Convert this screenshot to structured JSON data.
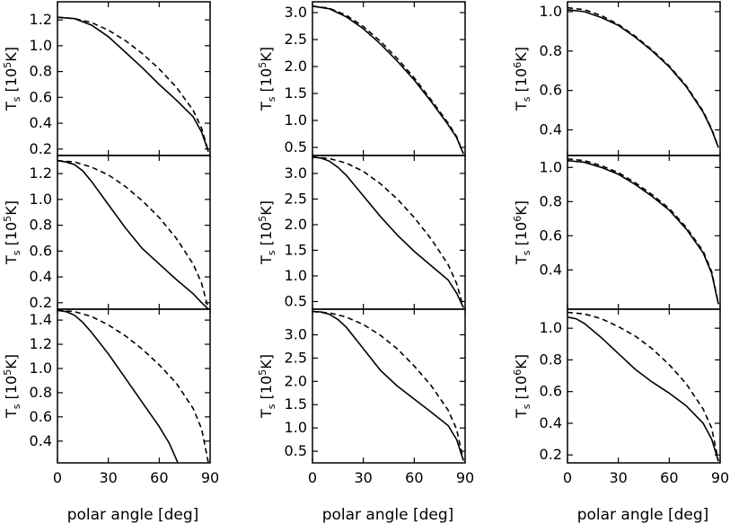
{
  "chart_data": [
    {
      "type": "line",
      "row": 0,
      "col": 0,
      "x_range": [
        0,
        90
      ],
      "ylim": [
        0.15,
        1.34
      ],
      "yticks": [
        0.2,
        0.4,
        0.6,
        0.8,
        1.0,
        1.2
      ],
      "ylabel": {
        "symbol": "T",
        "sub": "s",
        "unit_pre": "[10",
        "exp": "5",
        "unit_post": "K]"
      },
      "series": [
        {
          "style": "solid",
          "x": [
            0,
            10,
            20,
            30,
            40,
            50,
            60,
            70,
            80,
            85,
            89
          ],
          "y": [
            1.22,
            1.21,
            1.16,
            1.07,
            0.95,
            0.83,
            0.7,
            0.58,
            0.45,
            0.33,
            0.18
          ]
        },
        {
          "style": "dashed",
          "x": [
            0,
            10,
            20,
            30,
            40,
            50,
            60,
            70,
            80,
            85,
            89
          ],
          "y": [
            1.22,
            1.21,
            1.18,
            1.12,
            1.04,
            0.94,
            0.82,
            0.68,
            0.5,
            0.36,
            0.18
          ]
        }
      ]
    },
    {
      "type": "line",
      "row": 0,
      "col": 1,
      "x_range": [
        0,
        90
      ],
      "ylim": [
        0.35,
        3.2
      ],
      "yticks": [
        0.5,
        1.0,
        1.5,
        2.0,
        2.5,
        3.0
      ],
      "ylabel": {
        "symbol": "T",
        "sub": "s",
        "unit_pre": "[10",
        "exp": "5",
        "unit_post": "K]"
      },
      "series": [
        {
          "style": "solid",
          "x": [
            0,
            10,
            20,
            30,
            40,
            50,
            60,
            70,
            80,
            85,
            89
          ],
          "y": [
            3.12,
            3.07,
            2.92,
            2.7,
            2.42,
            2.1,
            1.75,
            1.35,
            0.92,
            0.68,
            0.38
          ]
        },
        {
          "style": "dashed",
          "x": [
            0,
            10,
            20,
            30,
            40,
            50,
            60,
            70,
            80,
            85,
            89
          ],
          "y": [
            3.12,
            3.08,
            2.95,
            2.74,
            2.47,
            2.15,
            1.79,
            1.38,
            0.95,
            0.7,
            0.38
          ]
        }
      ]
    },
    {
      "type": "line",
      "row": 0,
      "col": 2,
      "x_range": [
        0,
        90
      ],
      "ylim": [
        0.27,
        1.05
      ],
      "yticks": [
        0.4,
        0.6,
        0.8,
        1.0
      ],
      "ylabel": {
        "symbol": "T",
        "sub": "s",
        "unit_pre": "[10",
        "exp": "6",
        "unit_post": "K]"
      },
      "series": [
        {
          "style": "solid",
          "x": [
            0,
            10,
            20,
            30,
            40,
            50,
            60,
            70,
            80,
            85,
            89
          ],
          "y": [
            1.01,
            1.0,
            0.97,
            0.93,
            0.87,
            0.8,
            0.72,
            0.62,
            0.49,
            0.4,
            0.31
          ]
        },
        {
          "style": "dashed",
          "x": [
            0,
            10,
            20,
            30,
            40,
            50,
            60,
            70,
            80,
            85,
            89
          ],
          "y": [
            1.02,
            1.01,
            0.98,
            0.935,
            0.875,
            0.805,
            0.725,
            0.625,
            0.495,
            0.405,
            0.31
          ]
        }
      ]
    },
    {
      "type": "line",
      "row": 1,
      "col": 0,
      "x_range": [
        0,
        90
      ],
      "ylim": [
        0.15,
        1.34
      ],
      "yticks": [
        0.2,
        0.4,
        0.6,
        0.8,
        1.0,
        1.2
      ],
      "ylabel": {
        "symbol": "T",
        "sub": "s",
        "unit_pre": "[10",
        "exp": "5",
        "unit_post": "K]"
      },
      "series": [
        {
          "style": "solid",
          "x": [
            0,
            5,
            10,
            15,
            20,
            30,
            40,
            50,
            60,
            70,
            80,
            85,
            89
          ],
          "y": [
            1.3,
            1.29,
            1.27,
            1.22,
            1.14,
            0.96,
            0.78,
            0.62,
            0.5,
            0.38,
            0.27,
            0.2,
            0.15
          ]
        },
        {
          "style": "dashed",
          "x": [
            0,
            10,
            20,
            30,
            40,
            50,
            60,
            70,
            80,
            85,
            89
          ],
          "y": [
            1.3,
            1.29,
            1.25,
            1.19,
            1.1,
            0.99,
            0.86,
            0.7,
            0.5,
            0.35,
            0.15
          ]
        }
      ]
    },
    {
      "type": "line",
      "row": 1,
      "col": 1,
      "x_range": [
        0,
        90
      ],
      "ylim": [
        0.35,
        3.35
      ],
      "yticks": [
        0.5,
        1.0,
        1.5,
        2.0,
        2.5,
        3.0
      ],
      "ylabel": {
        "symbol": "T",
        "sub": "s",
        "unit_pre": "[10",
        "exp": "5",
        "unit_post": "K]"
      },
      "series": [
        {
          "style": "solid",
          "x": [
            0,
            5,
            10,
            15,
            20,
            30,
            40,
            50,
            60,
            70,
            80,
            85,
            89
          ],
          "y": [
            3.32,
            3.3,
            3.24,
            3.12,
            2.96,
            2.56,
            2.16,
            1.8,
            1.48,
            1.2,
            0.92,
            0.66,
            0.38
          ]
        },
        {
          "style": "dashed",
          "x": [
            0,
            10,
            20,
            30,
            40,
            50,
            60,
            70,
            80,
            85,
            89
          ],
          "y": [
            3.32,
            3.29,
            3.2,
            3.04,
            2.8,
            2.5,
            2.14,
            1.72,
            1.22,
            0.85,
            0.38
          ]
        }
      ]
    },
    {
      "type": "line",
      "row": 1,
      "col": 2,
      "x_range": [
        0,
        90
      ],
      "ylim": [
        0.17,
        1.07
      ],
      "yticks": [
        0.4,
        0.6,
        0.8,
        1.0
      ],
      "ylabel": {
        "symbol": "T",
        "sub": "s",
        "unit_pre": "[10",
        "exp": "6",
        "unit_post": "K]"
      },
      "series": [
        {
          "style": "solid",
          "x": [
            0,
            10,
            20,
            30,
            40,
            50,
            60,
            70,
            80,
            85,
            89
          ],
          "y": [
            1.04,
            1.03,
            1.0,
            0.96,
            0.9,
            0.83,
            0.75,
            0.64,
            0.5,
            0.38,
            0.2
          ]
        },
        {
          "style": "dashed",
          "x": [
            0,
            10,
            20,
            30,
            40,
            50,
            60,
            70,
            80,
            85,
            89
          ],
          "y": [
            1.05,
            1.04,
            1.01,
            0.97,
            0.91,
            0.84,
            0.76,
            0.65,
            0.51,
            0.39,
            0.2
          ]
        }
      ]
    },
    {
      "type": "line",
      "row": 2,
      "col": 0,
      "x_range": [
        0,
        90
      ],
      "ylim": [
        0.22,
        1.49
      ],
      "yticks": [
        0.4,
        0.6,
        0.8,
        1.0,
        1.2,
        1.4
      ],
      "ylabel": {
        "symbol": "T",
        "sub": "s",
        "unit_pre": "[10",
        "exp": "5",
        "unit_post": "K]"
      },
      "series": [
        {
          "style": "solid",
          "x": [
            0,
            5,
            10,
            15,
            20,
            30,
            40,
            50,
            60,
            66,
            71
          ],
          "y": [
            1.48,
            1.47,
            1.44,
            1.38,
            1.3,
            1.12,
            0.92,
            0.72,
            0.52,
            0.38,
            0.22
          ]
        },
        {
          "style": "dashed",
          "x": [
            0,
            10,
            20,
            30,
            40,
            50,
            60,
            70,
            80,
            85,
            89
          ],
          "y": [
            1.48,
            1.47,
            1.43,
            1.36,
            1.27,
            1.16,
            1.03,
            0.88,
            0.67,
            0.5,
            0.22
          ]
        }
      ]
    },
    {
      "type": "line",
      "row": 2,
      "col": 1,
      "x_range": [
        0,
        90
      ],
      "ylim": [
        0.25,
        3.55
      ],
      "yticks": [
        0.5,
        1.0,
        1.5,
        2.0,
        2.5,
        3.0
      ],
      "ylabel": {
        "symbol": "T",
        "sub": "s",
        "unit_pre": "[10",
        "exp": "5",
        "unit_post": "K]"
      },
      "series": [
        {
          "style": "solid",
          "x": [
            0,
            5,
            10,
            15,
            20,
            30,
            40,
            50,
            60,
            70,
            80,
            85,
            89
          ],
          "y": [
            3.5,
            3.49,
            3.44,
            3.33,
            3.16,
            2.7,
            2.24,
            1.9,
            1.62,
            1.34,
            1.05,
            0.75,
            0.3
          ]
        },
        {
          "style": "dashed",
          "x": [
            0,
            10,
            20,
            30,
            40,
            50,
            60,
            70,
            80,
            85,
            89
          ],
          "y": [
            3.5,
            3.47,
            3.38,
            3.22,
            2.99,
            2.7,
            2.33,
            1.91,
            1.38,
            0.97,
            0.3
          ]
        }
      ]
    },
    {
      "type": "line",
      "row": 2,
      "col": 2,
      "x_range": [
        0,
        90
      ],
      "ylim": [
        0.15,
        1.12
      ],
      "yticks": [
        0.2,
        0.4,
        0.6,
        0.8,
        1.0
      ],
      "ylabel": {
        "symbol": "T",
        "sub": "s",
        "unit_pre": "[10",
        "exp": "6",
        "unit_post": "K]"
      },
      "series": [
        {
          "style": "solid",
          "x": [
            0,
            5,
            10,
            20,
            30,
            40,
            50,
            60,
            70,
            80,
            85,
            89
          ],
          "y": [
            1.07,
            1.06,
            1.03,
            0.94,
            0.84,
            0.74,
            0.66,
            0.59,
            0.51,
            0.4,
            0.3,
            0.16
          ]
        },
        {
          "style": "dashed",
          "x": [
            0,
            10,
            20,
            30,
            40,
            50,
            60,
            70,
            80,
            85,
            89
          ],
          "y": [
            1.1,
            1.09,
            1.06,
            1.01,
            0.95,
            0.87,
            0.77,
            0.65,
            0.49,
            0.37,
            0.16
          ]
        }
      ]
    }
  ],
  "x_ticks": [
    "0",
    "30",
    "60",
    "90"
  ],
  "xlabel": "polar angle [deg]"
}
